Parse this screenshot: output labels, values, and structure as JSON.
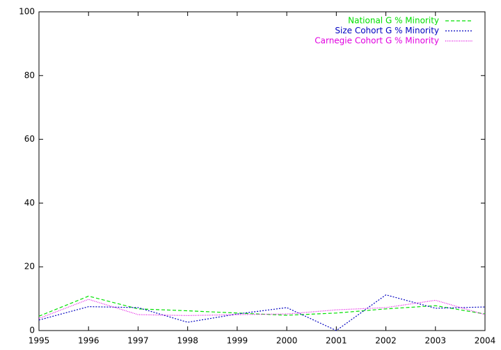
{
  "chart_data": {
    "type": "line",
    "x": [
      1995,
      1996,
      1997,
      1998,
      1999,
      2000,
      2001,
      2002,
      2003,
      2004
    ],
    "series": [
      {
        "name": "National G % Minority",
        "color": "#00e000",
        "values": [
          4.5,
          10.8,
          6.8,
          6.2,
          5.5,
          4.8,
          5.5,
          6.8,
          7.8,
          5.2
        ]
      },
      {
        "name": "Size Cohort G % Minority",
        "color": "#0000c0",
        "values": [
          3.3,
          7.5,
          7.2,
          2.6,
          5.2,
          7.2,
          0,
          11.2,
          7.0,
          7.4
        ]
      },
      {
        "name": "Carnegie Cohort G % Minority",
        "color": "#e000e0",
        "values": [
          3.8,
          9.8,
          5.0,
          4.7,
          5.0,
          5.2,
          6.5,
          7.2,
          9.5,
          5.0
        ]
      }
    ],
    "xlim": [
      1995,
      2004
    ],
    "xticks": [
      1995,
      1996,
      1997,
      1998,
      1999,
      2000,
      2001,
      2002,
      2003,
      2004
    ],
    "ylim": [
      0,
      100
    ],
    "yticks": [
      0,
      20,
      40,
      60,
      80,
      100
    ],
    "grid": false,
    "legend": "top-right"
  }
}
